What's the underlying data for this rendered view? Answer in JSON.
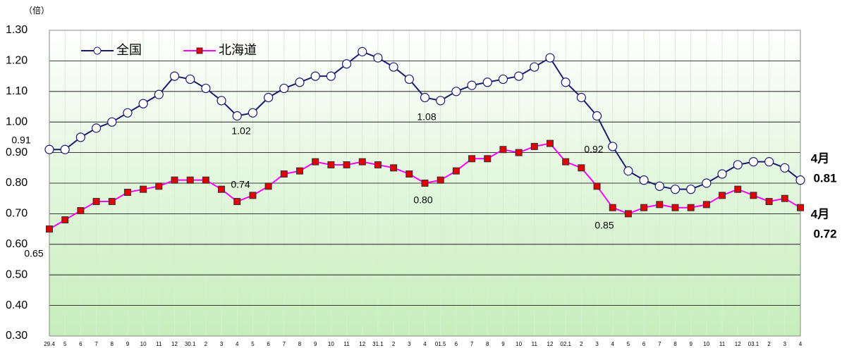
{
  "chart_data": {
    "type": "line",
    "y_label": "（倍）",
    "categories": [
      "29.4",
      "5",
      "6",
      "7",
      "8",
      "9",
      "10",
      "11",
      "12",
      "30.1",
      "2",
      "3",
      "4",
      "5",
      "6",
      "7",
      "8",
      "9",
      "10",
      "11",
      "12",
      "31.1",
      "2",
      "3",
      "4",
      "01.5",
      "6",
      "7",
      "8",
      "9",
      "10",
      "11",
      "12",
      "02.1",
      "2",
      "3",
      "4",
      "5",
      "6",
      "7",
      "8",
      "9",
      "10",
      "11",
      "12",
      "03.1",
      "2",
      "3",
      "4"
    ],
    "series": [
      {
        "name": "全国",
        "color": "#1a1a70",
        "marker": "circle",
        "values": [
          0.91,
          0.91,
          0.95,
          0.98,
          1.0,
          1.03,
          1.06,
          1.09,
          1.15,
          1.14,
          1.11,
          1.07,
          1.02,
          1.03,
          1.08,
          1.11,
          1.13,
          1.15,
          1.15,
          1.19,
          1.23,
          1.21,
          1.18,
          1.14,
          1.08,
          1.07,
          1.1,
          1.12,
          1.13,
          1.14,
          1.15,
          1.18,
          1.21,
          1.13,
          1.08,
          1.02,
          0.92,
          0.84,
          0.81,
          0.79,
          0.78,
          0.78,
          0.8,
          0.83,
          0.86,
          0.87,
          0.87,
          0.85,
          0.81
        ]
      },
      {
        "name": "北海道",
        "color": "#ff00ff",
        "marker": "square",
        "marker_color": "#e00000",
        "values": [
          0.65,
          0.68,
          0.71,
          0.74,
          0.74,
          0.77,
          0.78,
          0.79,
          0.81,
          0.81,
          0.81,
          0.78,
          0.74,
          0.76,
          0.79,
          0.83,
          0.84,
          0.87,
          0.86,
          0.86,
          0.87,
          0.86,
          0.85,
          0.83,
          0.8,
          0.81,
          0.84,
          0.88,
          0.88,
          0.91,
          0.9,
          0.92,
          0.93,
          0.87,
          0.85,
          0.79,
          0.72,
          0.7,
          0.72,
          0.73,
          0.72,
          0.72,
          0.73,
          0.76,
          0.78,
          0.76,
          0.74,
          0.75,
          0.72
        ]
      }
    ],
    "ylim": [
      0.3,
      1.3
    ],
    "yticks": [
      {
        "value": 0.3,
        "label": "0.30"
      },
      {
        "value": 0.4,
        "label": "0.40"
      },
      {
        "value": 0.5,
        "label": "0.50"
      },
      {
        "value": 0.6,
        "label": "0.60"
      },
      {
        "value": 0.7,
        "label": "0.70"
      },
      {
        "value": 0.8,
        "label": "0.80"
      },
      {
        "value": 0.9,
        "label": "0.90"
      },
      {
        "value": 1.0,
        "label": "1.00"
      },
      {
        "value": 1.1,
        "label": "1.10"
      },
      {
        "value": 1.2,
        "label": "1.20"
      },
      {
        "value": 1.3,
        "label": "1.30"
      }
    ],
    "grid": true,
    "legend": "top-left",
    "annotations": [
      "0.91",
      "1.02",
      "1.08",
      "0.92",
      "0.65",
      "0.74",
      "0.80",
      "0.85",
      "4月",
      "0.81",
      "4月",
      "0.72"
    ]
  }
}
